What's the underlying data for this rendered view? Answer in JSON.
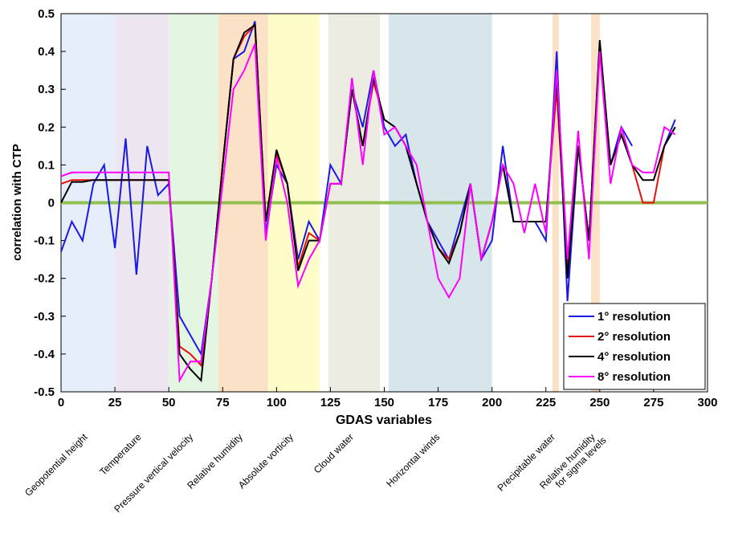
{
  "chart_data": {
    "type": "line",
    "xlabel": "GDAS variables",
    "ylabel": "correlation with CTP",
    "x": [
      0,
      5,
      10,
      15,
      20,
      25,
      30,
      35,
      40,
      45,
      50,
      55,
      60,
      65,
      70,
      75,
      80,
      85,
      90,
      95,
      100,
      105,
      110,
      115,
      120,
      125,
      130,
      135,
      140,
      145,
      150,
      155,
      160,
      165,
      170,
      175,
      180,
      185,
      190,
      195,
      200,
      205,
      210,
      215,
      220,
      225,
      230,
      235,
      240,
      245,
      250,
      255,
      260,
      265,
      270,
      275,
      280,
      285
    ],
    "series": [
      {
        "name": "1° resolution",
        "color": "#1a1ae6",
        "values": [
          -0.13,
          -0.05,
          -0.1,
          0.05,
          0.1,
          -0.12,
          0.17,
          -0.19,
          0.15,
          0.02,
          0.05,
          -0.3,
          -0.35,
          -0.4,
          -0.2,
          0.1,
          0.38,
          0.4,
          0.48,
          -0.08,
          0.1,
          0.05,
          -0.15,
          -0.05,
          -0.1,
          0.1,
          0.05,
          0.3,
          0.2,
          0.35,
          0.2,
          0.15,
          0.18,
          0.05,
          -0.05,
          -0.1,
          -0.15,
          -0.05,
          0.05,
          -0.15,
          -0.1,
          0.15,
          -0.05,
          -0.05,
          -0.05,
          -0.1,
          0.4,
          -0.26,
          0.15,
          -0.1,
          0.42,
          0.1,
          0.2,
          0.15,
          null,
          null,
          0.15,
          0.22
        ]
      },
      {
        "name": "2° resolution",
        "color": "#e61010",
        "values": [
          0.05,
          0.06,
          0.06,
          0.06,
          0.06,
          0.06,
          0.06,
          0.06,
          0.06,
          0.06,
          0.06,
          -0.38,
          -0.4,
          -0.43,
          -0.2,
          0.1,
          0.38,
          0.44,
          0.47,
          -0.05,
          0.13,
          0.05,
          -0.17,
          -0.08,
          -0.1,
          0.05,
          0.05,
          0.3,
          0.15,
          0.32,
          0.22,
          0.2,
          0.15,
          0.05,
          -0.05,
          -0.12,
          -0.15,
          -0.08,
          0.05,
          -0.15,
          -0.05,
          0.1,
          -0.05,
          -0.05,
          -0.05,
          -0.05,
          0.3,
          -0.18,
          0.15,
          -0.1,
          0.4,
          0.1,
          0.18,
          0.1,
          0,
          0,
          0.15,
          0.2
        ]
      },
      {
        "name": "4° resolution",
        "color": "#000000",
        "values": [
          0,
          0.055,
          0.055,
          0.06,
          0.06,
          0.06,
          0.06,
          0.06,
          0.06,
          0.06,
          0.06,
          -0.4,
          -0.44,
          -0.47,
          -0.2,
          0.1,
          0.38,
          0.45,
          0.47,
          -0.05,
          0.14,
          0.05,
          -0.18,
          -0.1,
          -0.1,
          0.05,
          0.05,
          0.3,
          0.15,
          0.33,
          0.22,
          0.2,
          0.15,
          0.05,
          -0.05,
          -0.12,
          -0.16,
          -0.08,
          0.05,
          -0.15,
          -0.05,
          0.1,
          -0.05,
          -0.05,
          -0.05,
          -0.05,
          0.33,
          -0.2,
          0.15,
          -0.1,
          0.43,
          0.1,
          0.18,
          0.1,
          0.06,
          0.06,
          0.15,
          0.2
        ]
      },
      {
        "name": "8° resolution",
        "color": "#ff00ff",
        "values": [
          0.07,
          0.08,
          0.08,
          0.08,
          0.08,
          0.08,
          0.08,
          0.08,
          0.08,
          0.08,
          0.08,
          -0.47,
          -0.42,
          -0.42,
          -0.2,
          0.05,
          0.3,
          0.35,
          0.42,
          -0.1,
          0.12,
          0,
          -0.22,
          -0.15,
          -0.1,
          0.05,
          0.05,
          0.33,
          0.1,
          0.35,
          0.18,
          0.2,
          0.15,
          0.1,
          -0.05,
          -0.2,
          -0.25,
          -0.2,
          0.05,
          -0.15,
          -0.05,
          0.1,
          0.05,
          -0.08,
          0.05,
          -0.08,
          0.35,
          -0.15,
          0.19,
          -0.15,
          0.4,
          0.05,
          0.2,
          0.1,
          0.08,
          0.08,
          0.2,
          0.18
        ]
      }
    ],
    "xlim": [
      0,
      300
    ],
    "xticks": [
      0,
      25,
      50,
      75,
      100,
      125,
      150,
      175,
      200,
      225,
      250,
      275,
      300
    ],
    "ylim": [
      -0.5,
      0.5
    ],
    "yticks": [
      -0.5,
      -0.4,
      -0.3,
      -0.2,
      -0.1,
      0,
      0.1,
      0.2,
      0.3,
      0.4,
      0.5
    ],
    "zero_line_color": "#92c050",
    "legend": "lower right",
    "regions": [
      {
        "label": [
          "Geopotential height"
        ],
        "x0": 0,
        "x1": 25,
        "color": "#e6eef9"
      },
      {
        "label": [
          "Temperature"
        ],
        "x0": 25,
        "x1": 50,
        "color": "#ece6f1"
      },
      {
        "label": [
          "Pressure vertical velocity"
        ],
        "x0": 50,
        "x1": 73,
        "color": "#e2f6e2"
      },
      {
        "label": [
          "Relative humidity"
        ],
        "x0": 73,
        "x1": 96,
        "color": "#fbe1c6"
      },
      {
        "label": [
          "Absolute vorticity"
        ],
        "x0": 96,
        "x1": 120,
        "color": "#fefcc8"
      },
      {
        "label": [
          "Cloud water"
        ],
        "x0": 124,
        "x1": 148,
        "color": "#edece3"
      },
      {
        "label": [
          "Horizontal winds"
        ],
        "x0": 152,
        "x1": 200,
        "color": "#d6e6eb"
      },
      {
        "label": [
          "Precipitable water"
        ],
        "x0": 228,
        "x1": 231,
        "color": "#fbe1c6"
      },
      {
        "label": [
          "Relative humidity",
          "for sigma levels"
        ],
        "x0": 246,
        "x1": 250,
        "color": "#fbe1c6"
      }
    ]
  }
}
